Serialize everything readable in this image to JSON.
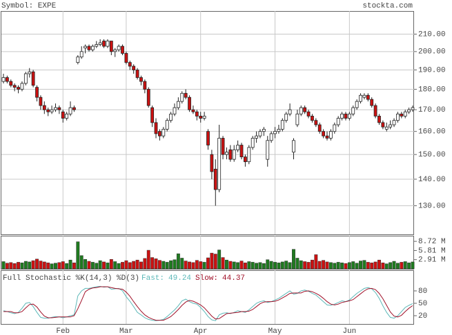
{
  "header": {
    "symbol": "Symbol: EXPE",
    "site": "stockta.com"
  },
  "chart_data": [
    {
      "type": "candlestick",
      "ohlc": [
        [
          184,
          188,
          183,
          186
        ],
        [
          186,
          187,
          183,
          184
        ],
        [
          184,
          185,
          181,
          182
        ],
        [
          182,
          183,
          179,
          181
        ],
        [
          181,
          182,
          178,
          180
        ],
        [
          180,
          184,
          179,
          183
        ],
        [
          183,
          189,
          182,
          188
        ],
        [
          188,
          191,
          186,
          189
        ],
        [
          189,
          190,
          181,
          182
        ],
        [
          181,
          182,
          174,
          176
        ],
        [
          176,
          177,
          170,
          172
        ],
        [
          172,
          174,
          168,
          170
        ],
        [
          170,
          171,
          167,
          169
        ],
        [
          169,
          172,
          168,
          170
        ],
        [
          170,
          173,
          169,
          171
        ],
        [
          171,
          172,
          168,
          170
        ],
        [
          169,
          170,
          164,
          166
        ],
        [
          166,
          169,
          165,
          168
        ],
        [
          168,
          174,
          167,
          171
        ],
        [
          171,
          172,
          169,
          170
        ],
        [
          194,
          198,
          193,
          197
        ],
        [
          197,
          203,
          196,
          200
        ],
        [
          202,
          204,
          199,
          203
        ],
        [
          203,
          204,
          200,
          201
        ],
        [
          201,
          204,
          200,
          203
        ],
        [
          203,
          206,
          202,
          204
        ],
        [
          204,
          207,
          203,
          205
        ],
        [
          206,
          207,
          202,
          203
        ],
        [
          203,
          207,
          202,
          206
        ],
        [
          206,
          206,
          198,
          200
        ],
        [
          200,
          202,
          197,
          201
        ],
        [
          201,
          204,
          200,
          203
        ],
        [
          203,
          204,
          198,
          199
        ],
        [
          199,
          200,
          193,
          194
        ],
        [
          194,
          195,
          190,
          192
        ],
        [
          192,
          193,
          188,
          190
        ],
        [
          190,
          191,
          185,
          186
        ],
        [
          186,
          187,
          182,
          184
        ],
        [
          184,
          185,
          178,
          180
        ],
        [
          180,
          181,
          171,
          172
        ],
        [
          171,
          172,
          162,
          164
        ],
        [
          164,
          166,
          157,
          159
        ],
        [
          160,
          161,
          156,
          158
        ],
        [
          158,
          162,
          157,
          161
        ],
        [
          161,
          166,
          160,
          165
        ],
        [
          165,
          169,
          164,
          168
        ],
        [
          168,
          173,
          167,
          171
        ],
        [
          171,
          176,
          170,
          174
        ],
        [
          174,
          179,
          173,
          178
        ],
        [
          178,
          180,
          175,
          176
        ],
        [
          176,
          177,
          169,
          170
        ],
        [
          170,
          172,
          168,
          169
        ],
        [
          169,
          170,
          165,
          167
        ],
        [
          167,
          169,
          164,
          166
        ],
        [
          166,
          169,
          165,
          167
        ],
        [
          160,
          161,
          152,
          154
        ],
        [
          150,
          152,
          140,
          143
        ],
        [
          144,
          148,
          130,
          136
        ],
        [
          136,
          163,
          135,
          157
        ],
        [
          157,
          158,
          148,
          150
        ],
        [
          150,
          153,
          148,
          151
        ],
        [
          152,
          154,
          147,
          148
        ],
        [
          148,
          154,
          147,
          152
        ],
        [
          152,
          156,
          151,
          154
        ],
        [
          154,
          155,
          148,
          149
        ],
        [
          149,
          150,
          145,
          147
        ],
        [
          147,
          154,
          146,
          153
        ],
        [
          153,
          158,
          152,
          157
        ],
        [
          157,
          160,
          155,
          158
        ],
        [
          158,
          161,
          157,
          160
        ],
        [
          160,
          162,
          158,
          161
        ],
        [
          148,
          158,
          145,
          156
        ],
        [
          156,
          160,
          155,
          159
        ],
        [
          159,
          162,
          157,
          160
        ],
        [
          160,
          163,
          159,
          161
        ],
        [
          161,
          166,
          160,
          165
        ],
        [
          165,
          169,
          164,
          168
        ],
        [
          168,
          173,
          167,
          170
        ],
        [
          151,
          157,
          148,
          156
        ],
        [
          163,
          170,
          162,
          168
        ],
        [
          168,
          172,
          167,
          171
        ],
        [
          171,
          172,
          168,
          169
        ],
        [
          169,
          170,
          166,
          167
        ],
        [
          167,
          168,
          164,
          165
        ],
        [
          165,
          166,
          162,
          163
        ],
        [
          163,
          164,
          159,
          160
        ],
        [
          160,
          161,
          157,
          158
        ],
        [
          158,
          160,
          156,
          157
        ],
        [
          157,
          161,
          156,
          160
        ],
        [
          160,
          164,
          159,
          163
        ],
        [
          163,
          167,
          162,
          166
        ],
        [
          166,
          169,
          165,
          168
        ],
        [
          168,
          169,
          165,
          166
        ],
        [
          166,
          169,
          165,
          168
        ],
        [
          168,
          172,
          167,
          171
        ],
        [
          171,
          175,
          170,
          174
        ],
        [
          174,
          178,
          173,
          177
        ],
        [
          176,
          178,
          175,
          177
        ],
        [
          177,
          178,
          174,
          175
        ],
        [
          175,
          176,
          171,
          172
        ],
        [
          172,
          173,
          166,
          167
        ],
        [
          167,
          168,
          163,
          164
        ],
        [
          164,
          165,
          161,
          162
        ],
        [
          161,
          164,
          160,
          162
        ],
        [
          162,
          165,
          161,
          163
        ],
        [
          163,
          166,
          162,
          165
        ],
        [
          165,
          169,
          164,
          168
        ],
        [
          168,
          169,
          166,
          167
        ],
        [
          167,
          170,
          166,
          169
        ],
        [
          169,
          171,
          168,
          170
        ],
        [
          170,
          172,
          169,
          171
        ]
      ],
      "ylim": [
        120,
        224
      ],
      "log_scale": true,
      "yticks": [
        {
          "value": 130,
          "label": "130.00"
        },
        {
          "value": 140,
          "label": "140.00"
        },
        {
          "value": 150,
          "label": "150.00"
        },
        {
          "value": 160,
          "label": "160.00"
        },
        {
          "value": 170,
          "label": "170.00"
        },
        {
          "value": 180,
          "label": "180.00"
        },
        {
          "value": 190,
          "label": "190.00"
        },
        {
          "value": 200,
          "label": "200.00"
        },
        {
          "value": 210,
          "label": "210.00"
        }
      ],
      "xticks": [
        {
          "value": 16,
          "label": "Feb"
        },
        {
          "value": 33,
          "label": "Mar"
        },
        {
          "value": 53,
          "label": "Apr"
        },
        {
          "value": 73,
          "label": "May"
        },
        {
          "value": 93,
          "label": "Jun"
        }
      ],
      "grid": true,
      "up_color": "#ffffff",
      "down_color": "#cc1111"
    },
    {
      "type": "bar",
      "values": [
        2.3,
        1.8,
        2.0,
        1.7,
        2.1,
        1.9,
        2.4,
        2.2,
        2.6,
        3.1,
        2.5,
        2.2,
        1.9,
        1.6,
        1.8,
        2.0,
        2.3,
        1.7,
        2.8,
        1.9,
        8.6,
        4.2,
        3.0,
        2.4,
        2.1,
        1.8,
        2.6,
        2.2,
        1.9,
        3.0,
        2.3,
        1.7,
        2.1,
        2.6,
        2.0,
        2.4,
        2.8,
        2.2,
        3.3,
        5.9,
        3.6,
        3.2,
        2.7,
        2.4,
        2.1,
        2.6,
        2.9,
        4.8,
        3.4,
        2.5,
        2.2,
        2.0,
        2.7,
        2.3,
        2.1,
        3.5,
        5.0,
        4.7,
        6.0,
        3.6,
        2.8,
        2.4,
        2.2,
        2.0,
        2.5,
        1.9,
        2.3,
        2.1,
        1.8,
        2.0,
        1.7,
        2.9,
        2.4,
        2.1,
        1.9,
        2.2,
        2.5,
        2.0,
        6.2,
        3.4,
        2.6,
        2.3,
        2.1,
        2.8,
        4.5,
        2.4,
        2.7,
        2.2,
        2.0,
        1.8,
        2.1,
        1.9,
        1.7,
        2.0,
        2.3,
        1.8,
        2.5,
        2.7,
        2.1,
        1.9,
        2.2,
        2.8,
        1.9,
        1.6,
        2.0,
        2.4,
        1.8,
        2.1,
        2.3,
        1.9,
        2.2
      ],
      "ylim": [
        0,
        10.5
      ],
      "yticks": [
        {
          "value": 2.91,
          "label": "2.91 M"
        },
        {
          "value": 5.81,
          "label": "5.81 M"
        },
        {
          "value": 8.72,
          "label": "8.72 M"
        }
      ],
      "up_color": "#1f7a1f",
      "down_color": "#cc1111"
    },
    {
      "type": "line",
      "title": "Full Stochastic %K(14,3) %D(3)",
      "series": [
        {
          "name": "Fast:",
          "color": "#5cb8b8",
          "values": [
            32,
            30,
            27,
            25,
            28,
            38,
            50,
            52,
            42,
            28,
            16,
            14,
            14,
            16,
            18,
            17,
            15,
            17,
            20,
            22,
            68,
            80,
            86,
            86,
            88,
            90,
            91,
            89,
            90,
            84,
            85,
            86,
            80,
            66,
            55,
            42,
            28,
            22,
            15,
            11,
            9,
            8,
            9,
            11,
            18,
            26,
            34,
            44,
            56,
            60,
            54,
            50,
            48,
            40,
            30,
            18,
            10,
            8,
            22,
            26,
            27,
            25,
            28,
            32,
            30,
            28,
            34,
            42,
            50,
            54,
            56,
            52,
            54,
            58,
            62,
            68,
            74,
            80,
            72,
            74,
            80,
            82,
            79,
            74,
            70,
            62,
            54,
            46,
            45,
            48,
            52,
            56,
            54,
            58,
            66,
            74,
            80,
            86,
            88,
            85,
            76,
            62,
            44,
            28,
            16,
            14,
            20,
            30,
            40,
            45,
            49.24
          ]
        },
        {
          "name": "Slow:",
          "color": "#a01028",
          "values": [
            30,
            30,
            30,
            27,
            27,
            30,
            39,
            47,
            48,
            41,
            29,
            19,
            15,
            15,
            16,
            17,
            17,
            17,
            17,
            20,
            37,
            57,
            78,
            84,
            87,
            88,
            90,
            90,
            90,
            88,
            86,
            85,
            84,
            77,
            67,
            54,
            42,
            31,
            22,
            16,
            12,
            9,
            9,
            9,
            13,
            18,
            26,
            35,
            45,
            53,
            57,
            55,
            51,
            46,
            39,
            29,
            19,
            12,
            13,
            19,
            25,
            26,
            27,
            28,
            30,
            30,
            31,
            35,
            42,
            49,
            53,
            54,
            54,
            55,
            58,
            63,
            68,
            74,
            75,
            75,
            75,
            79,
            80,
            78,
            74,
            69,
            62,
            54,
            48,
            46,
            48,
            52,
            54,
            56,
            59,
            66,
            73,
            80,
            85,
            86,
            83,
            74,
            61,
            45,
            29,
            19,
            17,
            21,
            30,
            38,
            44.37
          ]
        }
      ],
      "ylim": [
        0,
        100
      ],
      "yticks": [
        20,
        50,
        80
      ]
    }
  ]
}
